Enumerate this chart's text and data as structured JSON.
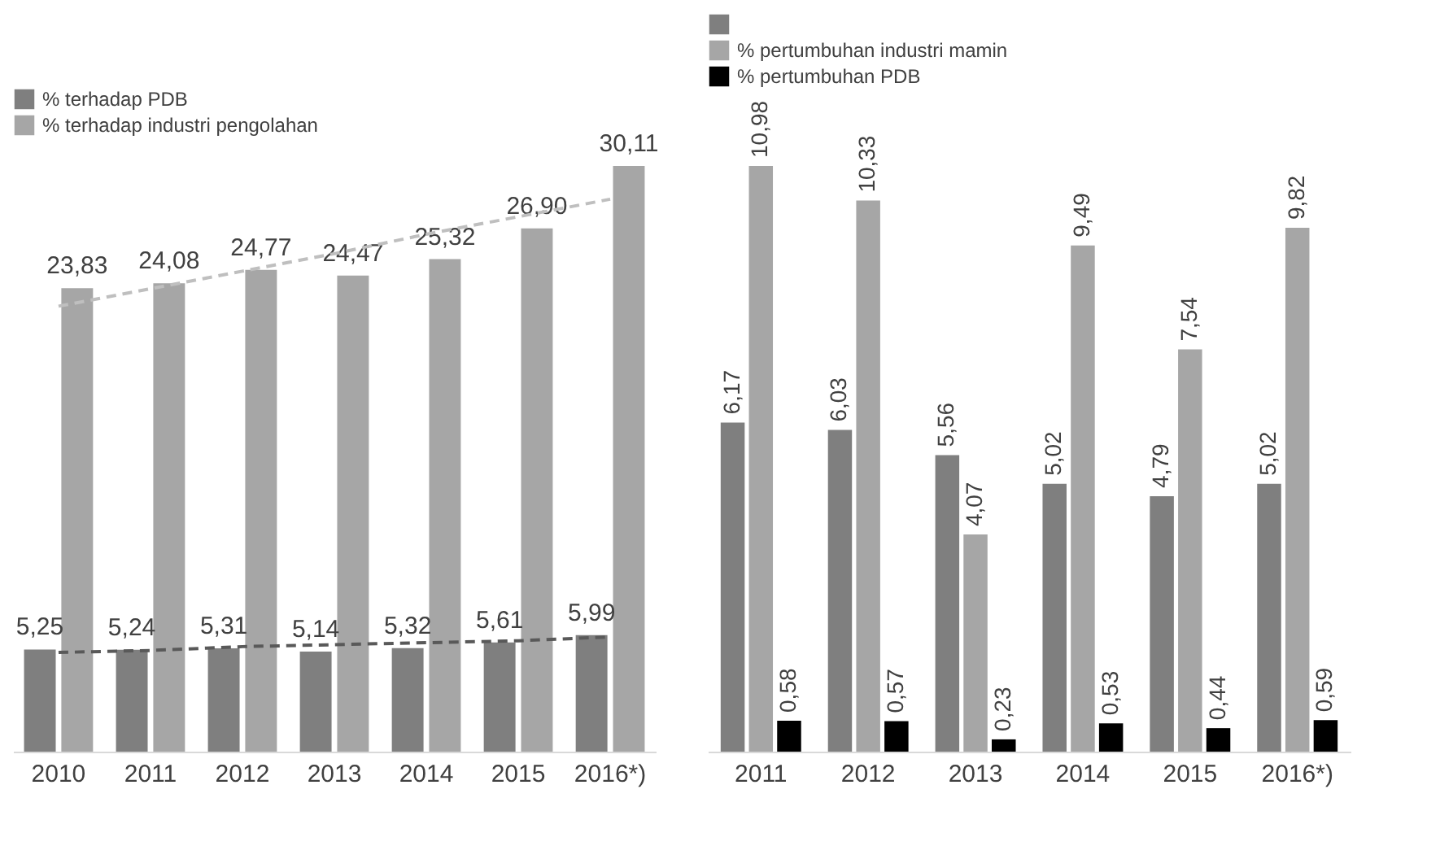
{
  "chart_data": [
    {
      "type": "bar",
      "categories": [
        "2010",
        "2011",
        "2012",
        "2013",
        "2014",
        "2015",
        "2016*)"
      ],
      "legend": "top left",
      "tick_labels": "x",
      "grid": false,
      "series": [
        {
          "name": "% terhadap PDB",
          "color": "#7f7f7f",
          "values": [
            5.25,
            5.24,
            5.31,
            5.14,
            5.32,
            5.61,
            5.99
          ],
          "value_labels": [
            "5,25",
            "5,24",
            "5,31",
            "5,14",
            "5,32",
            "5,61",
            "5,99"
          ]
        },
        {
          "name": "% terhadap industri pengolahan",
          "color": "#a6a6a6",
          "values": [
            23.83,
            24.08,
            24.77,
            24.47,
            25.32,
            26.9,
            30.11
          ],
          "value_labels": [
            "23,83",
            "24,08",
            "24,77",
            "24,47",
            "25,32",
            "26,90",
            "30,11"
          ]
        },
        {
          "type": "line",
          "color": "#bfbfbf",
          "line_style": "dashed",
          "values": [
            22.9,
            23.8,
            24.7,
            25.6,
            26.6,
            27.5,
            28.4
          ]
        },
        {
          "type": "line",
          "color": "#595959",
          "line_style": "dashed",
          "values": [
            5.1,
            5.2,
            5.4,
            5.5,
            5.6,
            5.7,
            5.9
          ]
        }
      ]
    },
    {
      "type": "bar",
      "categories": [
        "2011",
        "2012",
        "2013",
        "2014",
        "2015",
        "2016*)"
      ],
      "legend": "top left",
      "tick_labels": "x",
      "grid": false,
      "series": [
        {
          "color": "#7f7f7f",
          "values": [
            6.17,
            6.03,
            5.56,
            5.02,
            4.79,
            5.02
          ],
          "value_labels": [
            "6,17",
            "6,03",
            "5,56",
            "5,02",
            "4,79",
            "5,02"
          ]
        },
        {
          "name": "% pertumbuhan industri mamin",
          "color": "#a6a6a6",
          "values": [
            10.98,
            10.33,
            4.07,
            9.49,
            7.54,
            9.82
          ],
          "value_labels": [
            "10,98",
            "10,33",
            "4,07",
            "9,49",
            "7,54",
            "9,82"
          ]
        },
        {
          "name": "% pertumbuhan PDB",
          "color": "#000000",
          "values": [
            0.58,
            0.57,
            0.23,
            0.53,
            0.44,
            0.59
          ],
          "value_labels": [
            "0,58",
            "0,57",
            "0,23",
            "0,53",
            "0,44",
            "0,59"
          ]
        }
      ]
    }
  ]
}
